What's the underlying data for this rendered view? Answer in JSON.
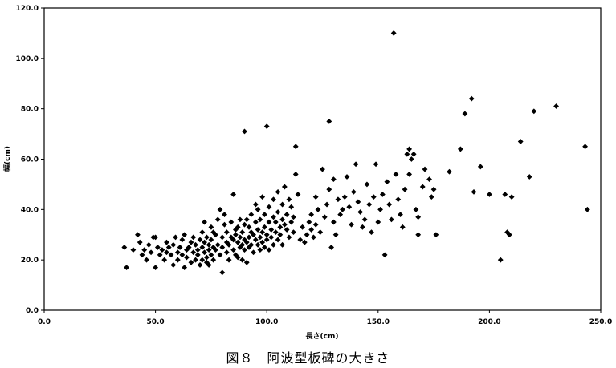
{
  "caption": "図８　阿波型板碑の大きさ",
  "chart_data": {
    "type": "scatter",
    "title": "",
    "xlabel": "長さ(cm)",
    "ylabel": "幅(cm)",
    "xlim": [
      0,
      250
    ],
    "ylim": [
      0,
      120
    ],
    "x_ticks": [
      "0.0",
      "50.0",
      "100.0",
      "150.0",
      "200.0",
      "250.0"
    ],
    "y_ticks": [
      "0.0",
      "20.0",
      "40.0",
      "60.0",
      "80.0",
      "100.0",
      "120.0"
    ],
    "grid": false,
    "legend": "none",
    "marker": "diamond",
    "marker_color": "#000000",
    "points": [
      [
        36,
        25
      ],
      [
        37,
        17
      ],
      [
        40,
        24
      ],
      [
        42,
        30
      ],
      [
        43,
        27
      ],
      [
        44,
        22
      ],
      [
        45,
        24
      ],
      [
        46,
        20
      ],
      [
        47,
        26
      ],
      [
        48,
        23
      ],
      [
        49,
        29
      ],
      [
        50,
        17
      ],
      [
        50,
        29
      ],
      [
        51,
        25
      ],
      [
        52,
        22
      ],
      [
        53,
        24
      ],
      [
        54,
        20
      ],
      [
        55,
        23
      ],
      [
        55,
        27
      ],
      [
        56,
        25
      ],
      [
        57,
        22
      ],
      [
        58,
        18
      ],
      [
        58,
        26
      ],
      [
        59,
        29
      ],
      [
        60,
        23
      ],
      [
        60,
        20
      ],
      [
        61,
        25
      ],
      [
        62,
        28
      ],
      [
        62,
        22
      ],
      [
        63,
        17
      ],
      [
        63,
        30
      ],
      [
        64,
        24
      ],
      [
        64,
        21
      ],
      [
        65,
        25
      ],
      [
        66,
        19
      ],
      [
        66,
        27
      ],
      [
        67,
        23
      ],
      [
        67,
        29
      ],
      [
        68,
        20
      ],
      [
        68,
        26
      ],
      [
        69,
        24
      ],
      [
        69,
        22
      ],
      [
        70,
        28
      ],
      [
        70,
        18
      ],
      [
        71,
        25
      ],
      [
        71,
        31
      ],
      [
        71,
        20
      ],
      [
        72,
        23
      ],
      [
        72,
        27
      ],
      [
        72,
        35
      ],
      [
        73,
        21
      ],
      [
        73,
        19
      ],
      [
        73,
        29
      ],
      [
        74,
        24
      ],
      [
        74,
        18
      ],
      [
        74,
        26
      ],
      [
        75,
        22
      ],
      [
        75,
        28
      ],
      [
        75,
        33
      ],
      [
        76,
        20
      ],
      [
        76,
        25
      ],
      [
        76,
        31
      ],
      [
        77,
        24
      ],
      [
        77,
        30
      ],
      [
        78,
        26
      ],
      [
        78,
        36
      ],
      [
        79,
        40
      ],
      [
        79,
        22
      ],
      [
        80,
        25
      ],
      [
        80,
        29
      ],
      [
        80,
        15
      ],
      [
        81,
        34
      ],
      [
        81,
        38
      ],
      [
        82,
        27
      ],
      [
        82,
        31
      ],
      [
        82,
        23
      ],
      [
        83,
        26
      ],
      [
        83,
        20
      ],
      [
        84,
        29
      ],
      [
        84,
        35
      ],
      [
        85,
        24
      ],
      [
        85,
        28
      ],
      [
        85,
        46
      ],
      [
        86,
        22
      ],
      [
        86,
        32
      ],
      [
        86,
        30
      ],
      [
        87,
        27
      ],
      [
        87,
        33
      ],
      [
        87,
        21
      ],
      [
        88,
        25
      ],
      [
        88,
        29
      ],
      [
        88,
        36
      ],
      [
        89,
        26
      ],
      [
        89,
        31
      ],
      [
        89,
        20
      ],
      [
        90,
        24
      ],
      [
        90,
        28
      ],
      [
        90,
        34
      ],
      [
        90,
        71
      ],
      [
        91,
        19
      ],
      [
        91,
        27
      ],
      [
        91,
        36
      ],
      [
        92,
        29
      ],
      [
        92,
        33
      ],
      [
        92,
        25
      ],
      [
        93,
        26
      ],
      [
        93,
        31
      ],
      [
        93,
        38
      ],
      [
        94,
        23
      ],
      [
        94,
        30
      ],
      [
        95,
        28
      ],
      [
        95,
        35
      ],
      [
        95,
        42
      ],
      [
        96,
        26
      ],
      [
        96,
        32
      ],
      [
        96,
        40
      ],
      [
        97,
        24
      ],
      [
        97,
        29
      ],
      [
        97,
        36
      ],
      [
        98,
        31
      ],
      [
        98,
        27
      ],
      [
        98,
        45
      ],
      [
        99,
        33
      ],
      [
        99,
        25
      ],
      [
        99,
        38
      ],
      [
        100,
        30
      ],
      [
        100,
        28
      ],
      [
        100,
        73
      ],
      [
        101,
        35
      ],
      [
        101,
        41
      ],
      [
        101,
        24
      ],
      [
        102,
        32
      ],
      [
        102,
        29
      ],
      [
        103,
        37
      ],
      [
        103,
        44
      ],
      [
        103,
        26
      ],
      [
        104,
        31
      ],
      [
        104,
        35
      ],
      [
        105,
        39
      ],
      [
        105,
        28
      ],
      [
        105,
        47
      ],
      [
        106,
        33
      ],
      [
        106,
        30
      ],
      [
        107,
        36
      ],
      [
        107,
        42
      ],
      [
        107,
        26
      ],
      [
        108,
        34
      ],
      [
        108,
        49
      ],
      [
        109,
        32
      ],
      [
        109,
        38
      ],
      [
        110,
        29
      ],
      [
        110,
        44
      ],
      [
        111,
        35
      ],
      [
        111,
        41
      ],
      [
        112,
        31
      ],
      [
        112,
        37
      ],
      [
        113,
        65
      ],
      [
        113,
        54
      ],
      [
        114,
        46
      ],
      [
        115,
        28
      ],
      [
        116,
        33
      ],
      [
        117,
        27
      ],
      [
        118,
        30
      ],
      [
        119,
        35
      ],
      [
        120,
        32
      ],
      [
        120,
        38
      ],
      [
        121,
        29
      ],
      [
        122,
        34
      ],
      [
        122,
        45
      ],
      [
        123,
        40
      ],
      [
        124,
        31
      ],
      [
        125,
        56
      ],
      [
        126,
        37
      ],
      [
        127,
        42
      ],
      [
        128,
        48
      ],
      [
        128,
        75
      ],
      [
        129,
        25
      ],
      [
        130,
        35
      ],
      [
        130,
        52
      ],
      [
        131,
        30
      ],
      [
        132,
        44
      ],
      [
        133,
        38
      ],
      [
        134,
        40
      ],
      [
        135,
        45
      ],
      [
        136,
        53
      ],
      [
        137,
        41
      ],
      [
        138,
        34
      ],
      [
        139,
        47
      ],
      [
        140,
        58
      ],
      [
        141,
        43
      ],
      [
        142,
        39
      ],
      [
        143,
        33
      ],
      [
        144,
        36
      ],
      [
        145,
        50
      ],
      [
        146,
        42
      ],
      [
        147,
        31
      ],
      [
        148,
        45
      ],
      [
        149,
        58
      ],
      [
        150,
        35
      ],
      [
        151,
        40
      ],
      [
        152,
        46
      ],
      [
        153,
        22
      ],
      [
        154,
        51
      ],
      [
        155,
        42
      ],
      [
        156,
        36
      ],
      [
        157,
        110
      ],
      [
        158,
        54
      ],
      [
        159,
        44
      ],
      [
        160,
        38
      ],
      [
        161,
        33
      ],
      [
        162,
        48
      ],
      [
        163,
        62
      ],
      [
        164,
        64
      ],
      [
        164,
        54
      ],
      [
        165,
        60
      ],
      [
        166,
        62
      ],
      [
        167,
        40
      ],
      [
        168,
        37
      ],
      [
        168,
        30
      ],
      [
        170,
        49
      ],
      [
        171,
        56
      ],
      [
        173,
        52
      ],
      [
        174,
        45
      ],
      [
        175,
        48
      ],
      [
        176,
        30
      ],
      [
        182,
        55
      ],
      [
        187,
        64
      ],
      [
        189,
        78
      ],
      [
        192,
        84
      ],
      [
        193,
        47
      ],
      [
        196,
        57
      ],
      [
        200,
        46
      ],
      [
        205,
        20
      ],
      [
        207,
        46
      ],
      [
        208,
        31
      ],
      [
        209,
        30
      ],
      [
        210,
        45
      ],
      [
        214,
        67
      ],
      [
        218,
        53
      ],
      [
        220,
        79
      ],
      [
        230,
        81
      ],
      [
        243,
        65
      ],
      [
        244,
        40
      ]
    ]
  }
}
